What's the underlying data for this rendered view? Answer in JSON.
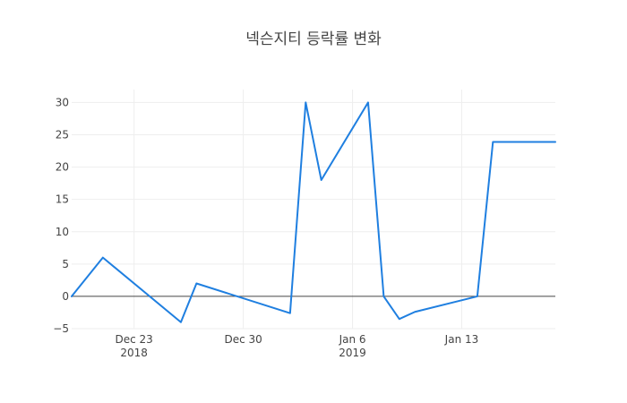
{
  "chart_data": {
    "type": "line",
    "title": "넥슨지티 등락률 변화",
    "xlabel": "",
    "ylabel": "",
    "x_axis": {
      "type": "date",
      "range": [
        "2018-12-19",
        "2019-01-19"
      ]
    },
    "ylim": [
      -5,
      32
    ],
    "grid": true,
    "zero_line": true,
    "x_ticks": [
      {
        "date": "2018-12-23",
        "label": "Dec 23",
        "sublabel": "2018"
      },
      {
        "date": "2018-12-30",
        "label": "Dec 30",
        "sublabel": ""
      },
      {
        "date": "2019-01-06",
        "label": "Jan 6",
        "sublabel": "2019"
      },
      {
        "date": "2019-01-13",
        "label": "Jan 13",
        "sublabel": ""
      }
    ],
    "y_ticks": [
      -5,
      0,
      5,
      10,
      15,
      20,
      25,
      30
    ],
    "series": [
      {
        "color": "#1f7fe0",
        "points": [
          {
            "x": "2018-12-19",
            "y": 0
          },
          {
            "x": "2018-12-21",
            "y": 6
          },
          {
            "x": "2018-12-26",
            "y": -4
          },
          {
            "x": "2018-12-27",
            "y": 2
          },
          {
            "x": "2019-01-02",
            "y": -2.6
          },
          {
            "x": "2019-01-03",
            "y": 30
          },
          {
            "x": "2019-01-04",
            "y": 18
          },
          {
            "x": "2019-01-07",
            "y": 30
          },
          {
            "x": "2019-01-08",
            "y": 0
          },
          {
            "x": "2019-01-09",
            "y": -3.5
          },
          {
            "x": "2019-01-10",
            "y": -2.4
          },
          {
            "x": "2019-01-14",
            "y": 0
          },
          {
            "x": "2019-01-15",
            "y": 23.9
          },
          {
            "x": "2019-01-16",
            "y": 23.9
          },
          {
            "x": "2019-01-17",
            "y": 23.9
          },
          {
            "x": "2019-01-18",
            "y": 23.9
          },
          {
            "x": "2019-01-19",
            "y": 23.9
          }
        ]
      }
    ]
  }
}
